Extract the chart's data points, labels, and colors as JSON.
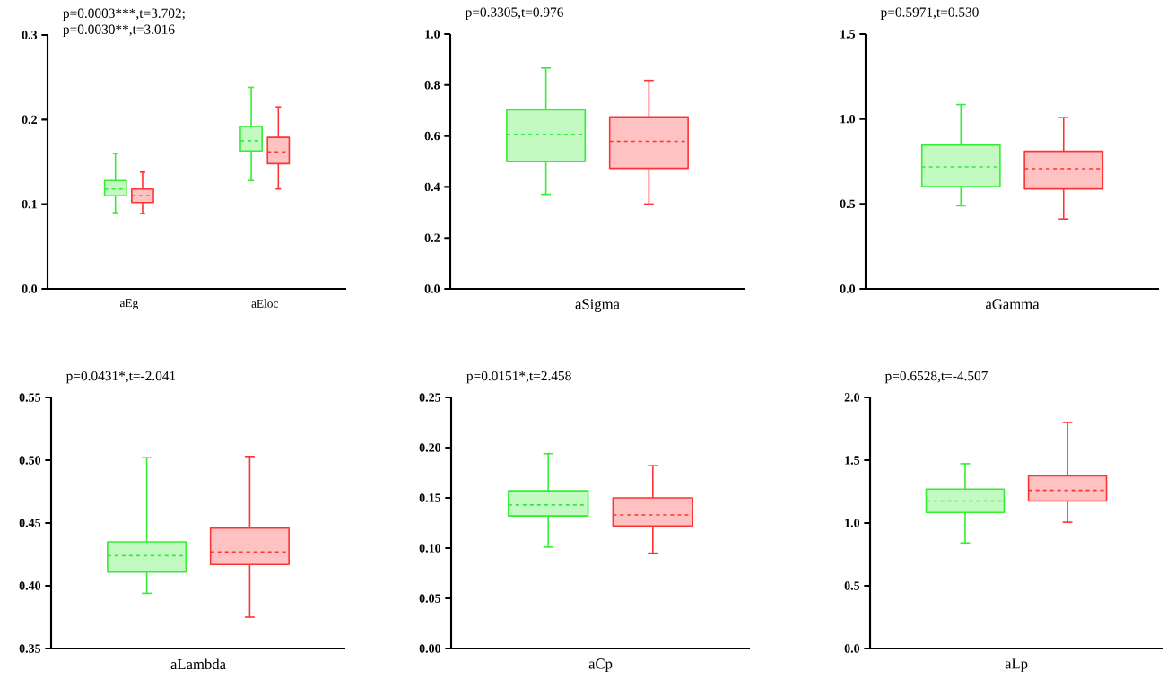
{
  "chart_data": [
    {
      "type": "box",
      "categories": [
        "aEg",
        "aEloc"
      ],
      "ylim": [
        0,
        0.3
      ],
      "yticks": [
        {
          "value": 0,
          "label": "0.0"
        },
        0.1,
        0.2,
        0.3
      ],
      "annotations": [
        "p=0.0003***,t=3.702;",
        "p=0.0030**,t=3.016"
      ],
      "series": [
        {
          "color": "#33ee33",
          "boxes": [
            {
              "low": 0.09,
              "q1": 0.11,
              "median": 0.118,
              "q3": 0.128,
              "high": 0.16
            },
            {
              "low": 0.128,
              "q1": 0.163,
              "median": 0.175,
              "q3": 0.192,
              "high": 0.238
            }
          ]
        },
        {
          "color": "#ff3333",
          "boxes": [
            {
              "low": 0.089,
              "q1": 0.102,
              "median": 0.11,
              "q3": 0.118,
              "high": 0.138
            },
            {
              "low": 0.118,
              "q1": 0.148,
              "median": 0.162,
              "q3": 0.179,
              "high": 0.215
            }
          ]
        }
      ]
    },
    {
      "type": "box",
      "categories": [
        "aSigma"
      ],
      "ylim": [
        0,
        1
      ],
      "yticks": [
        {
          "value": 0,
          "label": "0.0"
        },
        0.2,
        0.4,
        0.6,
        0.8,
        {
          "value": 1,
          "label": "1.0"
        }
      ],
      "annotations": [
        "p=0.3305,t=0.976"
      ],
      "series": [
        {
          "color": "#33ee33",
          "boxes": [
            {
              "low": 0.371,
              "q1": 0.499,
              "median": 0.606,
              "q3": 0.703,
              "high": 0.867
            }
          ]
        },
        {
          "color": "#ff3333",
          "boxes": [
            {
              "low": 0.333,
              "q1": 0.473,
              "median": 0.579,
              "q3": 0.675,
              "high": 0.818
            }
          ]
        }
      ]
    },
    {
      "type": "box",
      "categories": [
        "aGamma"
      ],
      "ylim": [
        0,
        1.5
      ],
      "yticks": [
        {
          "value": 0,
          "label": "0.0"
        },
        0.5,
        {
          "value": 1,
          "label": "1.0"
        },
        1.5
      ],
      "annotations": [
        "p=0.5971,t=0.530"
      ],
      "series": [
        {
          "color": "#33ee33",
          "boxes": [
            {
              "low": 0.489,
              "q1": 0.602,
              "median": 0.718,
              "q3": 0.847,
              "high": 1.085
            }
          ]
        },
        {
          "color": "#ff3333",
          "boxes": [
            {
              "low": 0.411,
              "q1": 0.588,
              "median": 0.708,
              "q3": 0.81,
              "high": 1.008
            }
          ]
        }
      ]
    },
    {
      "type": "box",
      "categories": [
        "aLambda"
      ],
      "ylim": [
        0.35,
        0.55
      ],
      "yticks": [
        0.35,
        {
          "value": 0.4,
          "label": "0.40"
        },
        0.45,
        {
          "value": 0.5,
          "label": "0.50"
        },
        0.55
      ],
      "annotations": [
        "p=0.0431*,t=-2.041"
      ],
      "series": [
        {
          "color": "#33ee33",
          "boxes": [
            {
              "low": 0.394,
              "q1": 0.411,
              "median": 0.424,
              "q3": 0.435,
              "high": 0.502
            }
          ]
        },
        {
          "color": "#ff3333",
          "boxes": [
            {
              "low": 0.375,
              "q1": 0.417,
              "median": 0.427,
              "q3": 0.446,
              "high": 0.503
            }
          ]
        }
      ]
    },
    {
      "type": "box",
      "categories": [
        "aCp"
      ],
      "ylim": [
        0,
        0.25
      ],
      "yticks": [
        {
          "value": 0,
          "label": "0.00"
        },
        0.05,
        {
          "value": 0.1,
          "label": "0.10"
        },
        0.15,
        {
          "value": 0.2,
          "label": "0.20"
        },
        0.25
      ],
      "annotations": [
        "p=0.0151*,t=2.458"
      ],
      "series": [
        {
          "color": "#33ee33",
          "boxes": [
            {
              "low": 0.101,
              "q1": 0.132,
              "median": 0.143,
              "q3": 0.157,
              "high": 0.194
            }
          ]
        },
        {
          "color": "#ff3333",
          "boxes": [
            {
              "low": 0.095,
              "q1": 0.122,
              "median": 0.133,
              "q3": 0.15,
              "high": 0.182
            }
          ]
        }
      ]
    },
    {
      "type": "box",
      "categories": [
        "aLp"
      ],
      "ylim": [
        0,
        2
      ],
      "yticks": [
        {
          "value": 0,
          "label": "0.0"
        },
        0.5,
        {
          "value": 1,
          "label": "1.0"
        },
        1.5,
        {
          "value": 2,
          "label": "2.0"
        }
      ],
      "annotations": [
        "p=0.6528,t=-4.507"
      ],
      "series": [
        {
          "color": "#33ee33",
          "boxes": [
            {
              "low": 0.841,
              "q1": 1.084,
              "median": 1.175,
              "q3": 1.27,
              "high": 1.472
            }
          ]
        },
        {
          "color": "#ff3333",
          "boxes": [
            {
              "low": 1.006,
              "q1": 1.175,
              "median": 1.26,
              "q3": 1.376,
              "high": 1.8
            }
          ]
        }
      ]
    }
  ]
}
